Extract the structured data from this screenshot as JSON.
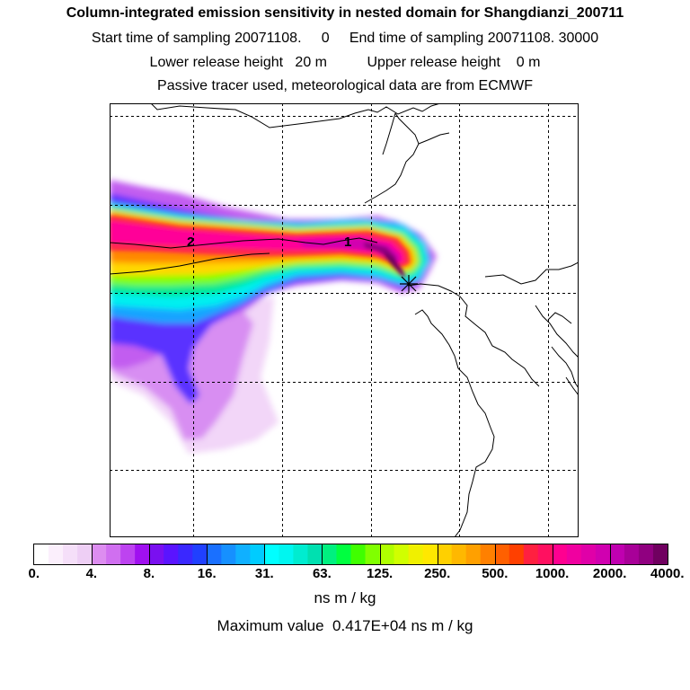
{
  "header": {
    "title": "Column-integrated emission sensitivity in nested domain for Shangdianzi_200711",
    "sampling": "Start time of sampling 20071108.     0     End time of sampling 20071108. 30000",
    "release": "Lower release height   20 m          Upper release height    0 m",
    "tracer": "Passive tracer used, meteorological data are from ECMWF"
  },
  "map": {
    "receptor_marker": "star-cross",
    "labels": [
      {
        "text": "2",
        "name": "trajectory-label-2"
      },
      {
        "text": "1",
        "name": "trajectory-label-1"
      }
    ]
  },
  "colorbar": {
    "tick_labels": [
      "0.",
      "4.",
      "8.",
      "16.",
      "31.",
      "63.",
      "125.",
      "250.",
      "500.",
      "1000.",
      "2000.",
      "4000."
    ],
    "units": "ns m / kg",
    "colors": [
      [
        "#ffffff",
        "#fbeffc",
        "#f5dff9",
        "#eecff5"
      ],
      [
        "#dd8df0",
        "#d06ff0",
        "#bd43f0",
        "#a010f0"
      ],
      [
        "#7a10f0",
        "#5a14ff",
        "#3a28ff",
        "#2040ff"
      ],
      [
        "#1a70ff",
        "#1690ff",
        "#10b0ff",
        "#00ccff"
      ],
      [
        "#00ffff",
        "#00f6f0",
        "#00ecd0",
        "#00e0b0"
      ],
      [
        "#00f080",
        "#00ff40",
        "#40ff00",
        "#80ff00"
      ],
      [
        "#b0ff00",
        "#d0ff00",
        "#f0f000",
        "#ffe800"
      ],
      [
        "#ffd000",
        "#ffb800",
        "#ffa000",
        "#ff8000"
      ],
      [
        "#ff6000",
        "#ff4000",
        "#ff2040",
        "#ff1060"
      ],
      [
        "#ff0090",
        "#f000a0",
        "#e000a8",
        "#d000b0"
      ],
      [
        "#c000b0",
        "#a80098",
        "#900080",
        "#700060"
      ]
    ]
  },
  "maximum_value": "Maximum value  0.417E+04 ns m / kg"
}
